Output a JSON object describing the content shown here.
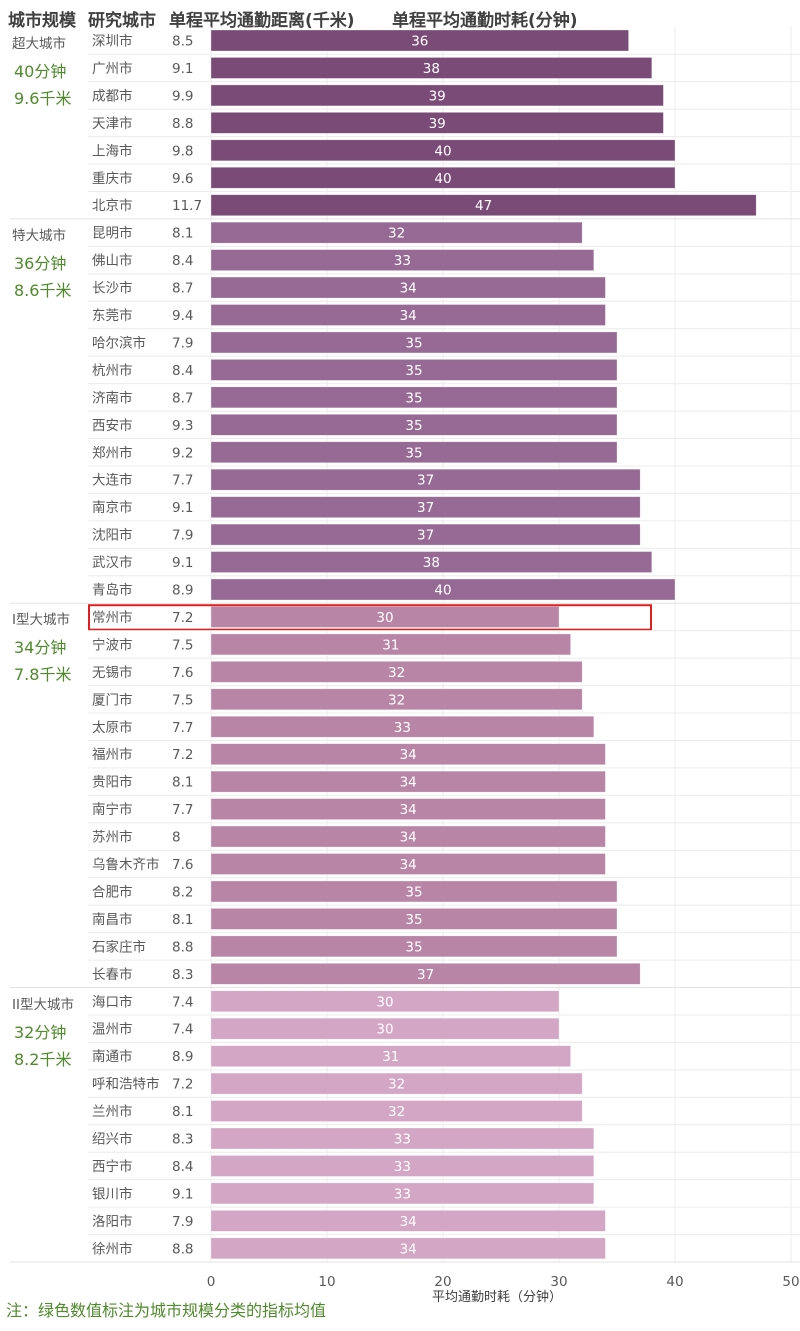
{
  "headers": {
    "scale": "城市规模",
    "city": "研究城市",
    "distance": "单程平均通勤距离(千米)",
    "time": "单程平均通勤时耗(分钟)"
  },
  "note": "注：绿色数值标注为城市规模分类的指标均值",
  "highlight_city": "常州市",
  "colors": {
    "超大城市": "#7b4b78",
    "特大城市": "#976a95",
    "I型大城市": "#b985a7",
    "II型大城市": "#d4a6c6",
    "mean_text": "#4f8a2c",
    "highlight_box": "#e02020"
  },
  "chart_data": {
    "type": "bar",
    "orientation": "horizontal",
    "title": "",
    "xlabel": "平均通勤时耗（分钟）",
    "ylabel": "",
    "xlim": [
      0,
      50
    ],
    "xticks": [
      0,
      10,
      20,
      30,
      40,
      50
    ],
    "grid": true,
    "groups": [
      {
        "name": "超大城市",
        "mean_time": "40分钟",
        "mean_distance": "9.6千米",
        "cities": [
          {
            "city": "深圳市",
            "distance": "8.5",
            "time": 36
          },
          {
            "city": "广州市",
            "distance": "9.1",
            "time": 38
          },
          {
            "city": "成都市",
            "distance": "9.9",
            "time": 39
          },
          {
            "city": "天津市",
            "distance": "8.8",
            "time": 39
          },
          {
            "city": "上海市",
            "distance": "9.8",
            "time": 40
          },
          {
            "city": "重庆市",
            "distance": "9.6",
            "time": 40
          },
          {
            "city": "北京市",
            "distance": "11.7",
            "time": 47
          }
        ]
      },
      {
        "name": "特大城市",
        "mean_time": "36分钟",
        "mean_distance": "8.6千米",
        "cities": [
          {
            "city": "昆明市",
            "distance": "8.1",
            "time": 32
          },
          {
            "city": "佛山市",
            "distance": "8.4",
            "time": 33
          },
          {
            "city": "长沙市",
            "distance": "8.7",
            "time": 34
          },
          {
            "city": "东莞市",
            "distance": "9.4",
            "time": 34
          },
          {
            "city": "哈尔滨市",
            "distance": "7.9",
            "time": 35
          },
          {
            "city": "杭州市",
            "distance": "8.4",
            "time": 35
          },
          {
            "city": "济南市",
            "distance": "8.7",
            "time": 35
          },
          {
            "city": "西安市",
            "distance": "9.3",
            "time": 35
          },
          {
            "city": "郑州市",
            "distance": "9.2",
            "time": 35
          },
          {
            "city": "大连市",
            "distance": "7.7",
            "time": 37
          },
          {
            "city": "南京市",
            "distance": "9.1",
            "time": 37
          },
          {
            "city": "沈阳市",
            "distance": "7.9",
            "time": 37
          },
          {
            "city": "武汉市",
            "distance": "9.1",
            "time": 38
          },
          {
            "city": "青岛市",
            "distance": "8.9",
            "time": 40
          }
        ]
      },
      {
        "name": "I型大城市",
        "mean_time": "34分钟",
        "mean_distance": "7.8千米",
        "cities": [
          {
            "city": "常州市",
            "distance": "7.2",
            "time": 30
          },
          {
            "city": "宁波市",
            "distance": "7.5",
            "time": 31
          },
          {
            "city": "无锡市",
            "distance": "7.6",
            "time": 32
          },
          {
            "city": "厦门市",
            "distance": "7.5",
            "time": 32
          },
          {
            "city": "太原市",
            "distance": "7.7",
            "time": 33
          },
          {
            "city": "福州市",
            "distance": "7.2",
            "time": 34
          },
          {
            "city": "贵阳市",
            "distance": "8.1",
            "time": 34
          },
          {
            "city": "南宁市",
            "distance": "7.7",
            "time": 34
          },
          {
            "city": "苏州市",
            "distance": "8",
            "time": 34
          },
          {
            "city": "乌鲁木齐市",
            "distance": "7.6",
            "time": 34
          },
          {
            "city": "合肥市",
            "distance": "8.2",
            "time": 35
          },
          {
            "city": "南昌市",
            "distance": "8.1",
            "time": 35
          },
          {
            "city": "石家庄市",
            "distance": "8.8",
            "time": 35
          },
          {
            "city": "长春市",
            "distance": "8.3",
            "time": 37
          }
        ]
      },
      {
        "name": "II型大城市",
        "mean_time": "32分钟",
        "mean_distance": "8.2千米",
        "cities": [
          {
            "city": "海口市",
            "distance": "7.4",
            "time": 30
          },
          {
            "city": "温州市",
            "distance": "7.4",
            "time": 30
          },
          {
            "city": "南通市",
            "distance": "8.9",
            "time": 31
          },
          {
            "city": "呼和浩特市",
            "distance": "7.2",
            "time": 32
          },
          {
            "city": "兰州市",
            "distance": "8.1",
            "time": 32
          },
          {
            "city": "绍兴市",
            "distance": "8.3",
            "time": 33
          },
          {
            "city": "西宁市",
            "distance": "8.4",
            "time": 33
          },
          {
            "city": "银川市",
            "distance": "9.1",
            "time": 33
          },
          {
            "city": "洛阳市",
            "distance": "7.9",
            "time": 34
          },
          {
            "city": "徐州市",
            "distance": "8.8",
            "time": 34
          }
        ]
      }
    ]
  }
}
